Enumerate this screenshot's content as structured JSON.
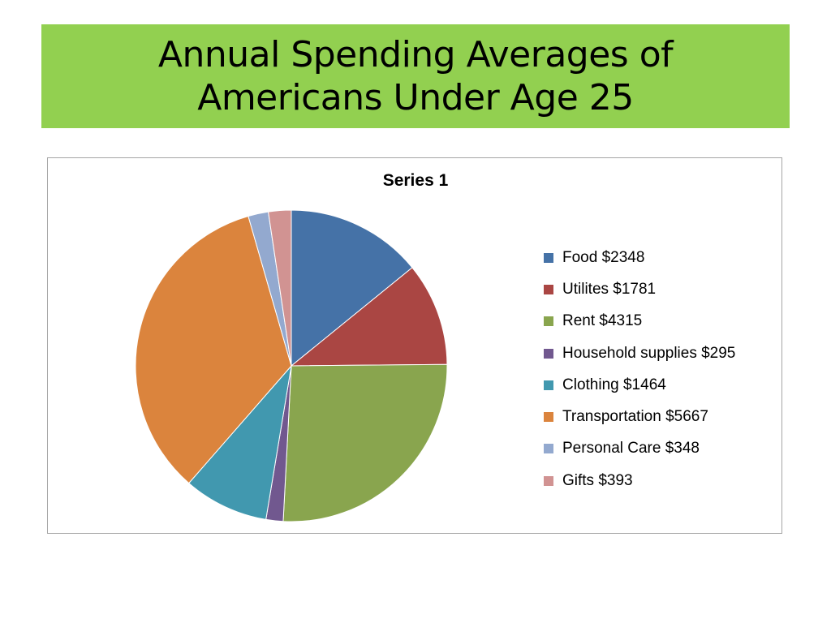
{
  "slide": {
    "title_line1": "Annual Spending Averages of",
    "title_line2": "Americans Under Age 25",
    "title_bg": "#92d050"
  },
  "chart_data": {
    "type": "pie",
    "title": "Series 1",
    "legend_position": "right",
    "categories": [
      "Food $2348",
      "Utilites $1781",
      "Rent $4315",
      "Household supplies $295",
      "Clothing $1464",
      "Transportation $5667",
      "Personal Care $348",
      "Gifts $393"
    ],
    "values": [
      2348,
      1781,
      4315,
      295,
      1464,
      5667,
      348,
      393
    ],
    "colors": [
      "#4572a7",
      "#aa4643",
      "#89a54e",
      "#71588f",
      "#4198af",
      "#db843d",
      "#93a9cf",
      "#d19392"
    ]
  }
}
